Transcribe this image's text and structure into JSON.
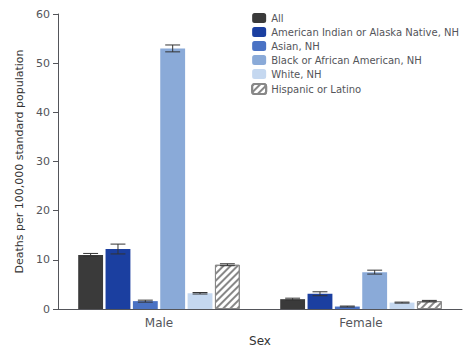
{
  "chart_data": {
    "type": "bar",
    "xlabel": "Sex",
    "ylabel": "Deaths per 100,000 standard population",
    "categories": [
      "Male",
      "Female"
    ],
    "series": [
      {
        "name": "All",
        "color": "#3a3a3a",
        "values": [
          11.0,
          2.0
        ],
        "errors": [
          0.3,
          0.2
        ]
      },
      {
        "name": "American Indian or Alaska Native, NH",
        "color": "#1b3fa0",
        "values": [
          12.2,
          3.1
        ],
        "errors": [
          1.0,
          0.4
        ]
      },
      {
        "name": "Asian, NH",
        "color": "#4a72c4",
        "values": [
          1.6,
          0.5
        ],
        "errors": [
          0.2,
          0.1
        ]
      },
      {
        "name": "Black or African American, NH",
        "color": "#8aaad8",
        "values": [
          53.0,
          7.5
        ],
        "errors": [
          0.7,
          0.4
        ]
      },
      {
        "name": "White, NH",
        "color": "#c5d8f0",
        "values": [
          3.2,
          1.3
        ],
        "errors": [
          0.15,
          0.1
        ]
      },
      {
        "name": "Hispanic or Latino",
        "color": "#ffffff",
        "values": [
          9.0,
          1.6
        ],
        "errors": [
          0.2,
          0.15
        ]
      }
    ],
    "ylim": [
      0,
      60
    ],
    "yticks": [
      0,
      10,
      20,
      30,
      40,
      50,
      60
    ],
    "grid": false,
    "legend": "upper right"
  }
}
